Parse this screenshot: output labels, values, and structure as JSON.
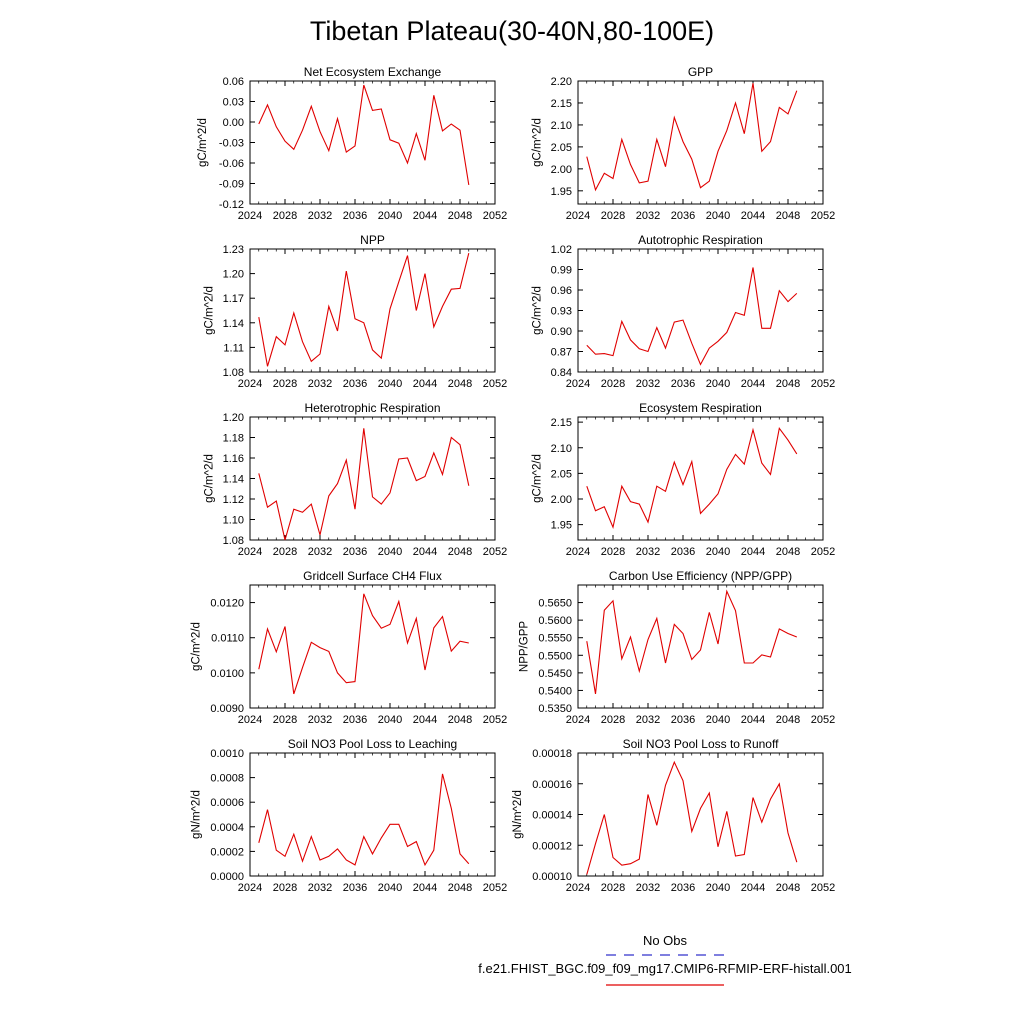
{
  "title": "Tibetan Plateau(30-40N,80-100E)",
  "legend": {
    "obs_label": "No Obs",
    "obs_color": "#3333cc",
    "case_label": "f.e21.FHIST_BGC.f09_f09_mg17.CMIP6-RFMIP-ERF-histall.001",
    "case_color": "#e00000"
  },
  "line_color": "#e00000",
  "chart_data": [
    {
      "type": "line",
      "title": "Net Ecosystem Exchange",
      "ylabel": "gC/m^2/d",
      "xlim": [
        2024,
        2052
      ],
      "xticks": [
        "2024",
        "2028",
        "2032",
        "2036",
        "2040",
        "2044",
        "2048",
        "2052"
      ],
      "ylim": [
        -0.12,
        0.06
      ],
      "yticks": [
        "0.06",
        "0.03",
        "0.00",
        "-0.03",
        "-0.06",
        "-0.09",
        "-0.12"
      ],
      "x": [
        2025,
        2026,
        2027,
        2028,
        2029,
        2030,
        2031,
        2032,
        2033,
        2034,
        2035,
        2036,
        2037,
        2038,
        2039,
        2040,
        2041,
        2042,
        2043,
        2044,
        2045,
        2046,
        2047,
        2048,
        2049
      ],
      "values": [
        -0.003,
        0.025,
        -0.007,
        -0.028,
        -0.04,
        -0.012,
        0.023,
        -0.014,
        -0.042,
        0.005,
        -0.044,
        -0.035,
        0.054,
        0.017,
        0.019,
        -0.026,
        -0.031,
        -0.06,
        -0.017,
        -0.056,
        0.039,
        -0.013,
        -0.003,
        -0.012,
        -0.092
      ]
    },
    {
      "type": "line",
      "title": "GPP",
      "ylabel": "gC/m^2/d",
      "xlim": [
        2024,
        2052
      ],
      "xticks": [
        "2024",
        "2028",
        "2032",
        "2036",
        "2040",
        "2044",
        "2048",
        "2052"
      ],
      "ylim": [
        1.92,
        2.2
      ],
      "yticks": [
        "2.20",
        "2.15",
        "2.10",
        "2.05",
        "2.00",
        "1.95"
      ],
      "x": [
        2025,
        2026,
        2027,
        2028,
        2029,
        2030,
        2031,
        2032,
        2033,
        2034,
        2035,
        2036,
        2037,
        2038,
        2039,
        2040,
        2041,
        2042,
        2043,
        2044,
        2045,
        2046,
        2047,
        2048,
        2049
      ],
      "values": [
        2.028,
        1.952,
        1.99,
        1.978,
        2.067,
        2.01,
        1.968,
        1.972,
        2.067,
        2.005,
        2.117,
        2.062,
        2.022,
        1.957,
        1.972,
        2.04,
        2.087,
        2.15,
        2.08,
        2.195,
        2.04,
        2.062,
        2.14,
        2.125,
        2.178
      ]
    },
    {
      "type": "line",
      "title": "NPP",
      "ylabel": "gC/m^2/d",
      "xlim": [
        2024,
        2052
      ],
      "xticks": [
        "2024",
        "2028",
        "2032",
        "2036",
        "2040",
        "2044",
        "2048",
        "2052"
      ],
      "ylim": [
        1.08,
        1.23
      ],
      "yticks": [
        "1.23",
        "1.20",
        "1.17",
        "1.14",
        "1.11",
        "1.08"
      ],
      "x": [
        2025,
        2026,
        2027,
        2028,
        2029,
        2030,
        2031,
        2032,
        2033,
        2034,
        2035,
        2036,
        2037,
        2038,
        2039,
        2040,
        2041,
        2042,
        2043,
        2044,
        2045,
        2046,
        2047,
        2048,
        2049
      ],
      "values": [
        1.147,
        1.087,
        1.123,
        1.113,
        1.152,
        1.117,
        1.093,
        1.102,
        1.16,
        1.13,
        1.203,
        1.145,
        1.14,
        1.107,
        1.097,
        1.157,
        1.19,
        1.222,
        1.155,
        1.2,
        1.135,
        1.16,
        1.181,
        1.182,
        1.225
      ]
    },
    {
      "type": "line",
      "title": "Autotrophic Respiration",
      "ylabel": "gC/m^2/d",
      "xlim": [
        2024,
        2052
      ],
      "xticks": [
        "2024",
        "2028",
        "2032",
        "2036",
        "2040",
        "2044",
        "2048",
        "2052"
      ],
      "ylim": [
        0.84,
        1.02
      ],
      "yticks": [
        "1.02",
        "0.99",
        "0.96",
        "0.93",
        "0.90",
        "0.87",
        "0.84"
      ],
      "x": [
        2025,
        2026,
        2027,
        2028,
        2029,
        2030,
        2031,
        2032,
        2033,
        2034,
        2035,
        2036,
        2037,
        2038,
        2039,
        2040,
        2041,
        2042,
        2043,
        2044,
        2045,
        2046,
        2047,
        2048,
        2049
      ],
      "values": [
        0.879,
        0.866,
        0.867,
        0.864,
        0.914,
        0.887,
        0.874,
        0.87,
        0.905,
        0.875,
        0.913,
        0.916,
        0.882,
        0.851,
        0.875,
        0.885,
        0.898,
        0.927,
        0.923,
        0.993,
        0.904,
        0.904,
        0.959,
        0.943,
        0.955
      ]
    },
    {
      "type": "line",
      "title": "Heterotrophic Respiration",
      "ylabel": "gC/m^2/d",
      "xlim": [
        2024,
        2052
      ],
      "xticks": [
        "2024",
        "2028",
        "2032",
        "2036",
        "2040",
        "2044",
        "2048",
        "2052"
      ],
      "ylim": [
        1.08,
        1.2
      ],
      "yticks": [
        "1.20",
        "1.18",
        "1.16",
        "1.14",
        "1.12",
        "1.10",
        "1.08"
      ],
      "x": [
        2025,
        2026,
        2027,
        2028,
        2029,
        2030,
        2031,
        2032,
        2033,
        2034,
        2035,
        2036,
        2037,
        2038,
        2039,
        2040,
        2041,
        2042,
        2043,
        2044,
        2045,
        2046,
        2047,
        2048,
        2049
      ],
      "values": [
        1.145,
        1.112,
        1.118,
        1.08,
        1.11,
        1.107,
        1.115,
        1.085,
        1.123,
        1.135,
        1.158,
        1.11,
        1.189,
        1.122,
        1.115,
        1.126,
        1.159,
        1.16,
        1.138,
        1.142,
        1.165,
        1.144,
        1.18,
        1.173,
        1.133
      ]
    },
    {
      "type": "line",
      "title": "Ecosystem Respiration",
      "ylabel": "gC/m^2/d",
      "xlim": [
        2024,
        2052
      ],
      "xticks": [
        "2024",
        "2028",
        "2032",
        "2036",
        "2040",
        "2044",
        "2048",
        "2052"
      ],
      "ylim": [
        1.92,
        2.16
      ],
      "yticks": [
        "2.15",
        "2.10",
        "2.05",
        "2.00",
        "1.95"
      ],
      "x": [
        2025,
        2026,
        2027,
        2028,
        2029,
        2030,
        2031,
        2032,
        2033,
        2034,
        2035,
        2036,
        2037,
        2038,
        2039,
        2040,
        2041,
        2042,
        2043,
        2044,
        2045,
        2046,
        2047,
        2048,
        2049
      ],
      "values": [
        2.025,
        1.977,
        1.985,
        1.945,
        2.025,
        1.995,
        1.99,
        1.955,
        2.025,
        2.015,
        2.072,
        2.028,
        2.073,
        1.972,
        1.99,
        2.01,
        2.058,
        2.087,
        2.068,
        2.135,
        2.07,
        2.048,
        2.138,
        2.115,
        2.088
      ]
    },
    {
      "type": "line",
      "title": "Gridcell Surface CH4 Flux",
      "ylabel": "gC/m^2/d",
      "xlim": [
        2024,
        2052
      ],
      "xticks": [
        "2024",
        "2028",
        "2032",
        "2036",
        "2040",
        "2044",
        "2048",
        "2052"
      ],
      "ylim": [
        0.009,
        0.0125
      ],
      "yticks": [
        "0.0120",
        "0.0110",
        "0.0100",
        "0.0090"
      ],
      "x": [
        2025,
        2026,
        2027,
        2028,
        2029,
        2030,
        2031,
        2032,
        2033,
        2034,
        2035,
        2036,
        2037,
        2038,
        2039,
        2040,
        2041,
        2042,
        2043,
        2044,
        2045,
        2046,
        2047,
        2048,
        2049
      ],
      "values": [
        0.0101,
        0.01125,
        0.0106,
        0.01132,
        0.0094,
        0.01015,
        0.01087,
        0.01072,
        0.01061,
        0.01,
        0.00972,
        0.00975,
        0.01225,
        0.01163,
        0.01127,
        0.01138,
        0.01203,
        0.01085,
        0.01155,
        0.01008,
        0.01128,
        0.0116,
        0.01062,
        0.0109,
        0.01085
      ]
    },
    {
      "type": "line",
      "title": "Carbon Use Efficiency (NPP/GPP)",
      "ylabel": "NPP/GPP",
      "xlim": [
        2024,
        2052
      ],
      "xticks": [
        "2024",
        "2028",
        "2032",
        "2036",
        "2040",
        "2044",
        "2048",
        "2052"
      ],
      "ylim": [
        0.535,
        0.57
      ],
      "yticks": [
        "0.5650",
        "0.5600",
        "0.5550",
        "0.5500",
        "0.5450",
        "0.5400",
        "0.5350"
      ],
      "x": [
        2025,
        2026,
        2027,
        2028,
        2029,
        2030,
        2031,
        2032,
        2033,
        2034,
        2035,
        2036,
        2037,
        2038,
        2039,
        2040,
        2041,
        2042,
        2043,
        2044,
        2045,
        2046,
        2047,
        2048,
        2049
      ],
      "values": [
        0.554,
        0.539,
        0.5628,
        0.5655,
        0.549,
        0.5552,
        0.5455,
        0.5545,
        0.5605,
        0.5478,
        0.5588,
        0.5562,
        0.5488,
        0.5515,
        0.5622,
        0.5532,
        0.5682,
        0.5627,
        0.5478,
        0.5478,
        0.5501,
        0.5495,
        0.5575,
        0.5562,
        0.5552
      ]
    },
    {
      "type": "line",
      "title": "Soil NO3 Pool Loss to Leaching",
      "ylabel": "gN/m^2/d",
      "xlim": [
        2024,
        2052
      ],
      "xticks": [
        "2024",
        "2028",
        "2032",
        "2036",
        "2040",
        "2044",
        "2048",
        "2052"
      ],
      "ylim": [
        0,
        0.001
      ],
      "yticks": [
        "0.0010",
        "0.0008",
        "0.0006",
        "0.0004",
        "0.0002",
        "0.0000"
      ],
      "x": [
        2025,
        2026,
        2027,
        2028,
        2029,
        2030,
        2031,
        2032,
        2033,
        2034,
        2035,
        2036,
        2037,
        2038,
        2039,
        2040,
        2041,
        2042,
        2043,
        2044,
        2045,
        2046,
        2047,
        2048,
        2049
      ],
      "values": [
        0.00027,
        0.00054,
        0.00021,
        0.00016,
        0.00034,
        0.00012,
        0.00032,
        0.00013,
        0.00016,
        0.00022,
        0.00013,
        9e-05,
        0.00032,
        0.00018,
        0.00031,
        0.00042,
        0.00042,
        0.00024,
        0.00028,
        9e-05,
        0.00021,
        0.00083,
        0.00055,
        0.00018,
        0.0001
      ]
    },
    {
      "type": "line",
      "title": "Soil NO3 Pool Loss to Runoff",
      "ylabel": "gN/m^2/d",
      "xlim": [
        2024,
        2052
      ],
      "xticks": [
        "2024",
        "2028",
        "2032",
        "2036",
        "2040",
        "2044",
        "2048",
        "2052"
      ],
      "ylim": [
        0.0001,
        0.00018
      ],
      "yticks": [
        "0.00018",
        "0.00016",
        "0.00014",
        "0.00012",
        "0.00010"
      ],
      "x": [
        2025,
        2026,
        2027,
        2028,
        2029,
        2030,
        2031,
        2032,
        2033,
        2034,
        2035,
        2036,
        2037,
        2038,
        2039,
        2040,
        2041,
        2042,
        2043,
        2044,
        2045,
        2046,
        2047,
        2048,
        2049
      ],
      "values": [
        0.000101,
        0.000121,
        0.00014,
        0.000112,
        0.000107,
        0.000108,
        0.000111,
        0.000153,
        0.000133,
        0.000159,
        0.000174,
        0.000162,
        0.000129,
        0.000144,
        0.000154,
        0.000119,
        0.000142,
        0.000113,
        0.000114,
        0.000151,
        0.000135,
        0.00015,
        0.00016,
        0.000128,
        0.000109
      ]
    }
  ]
}
